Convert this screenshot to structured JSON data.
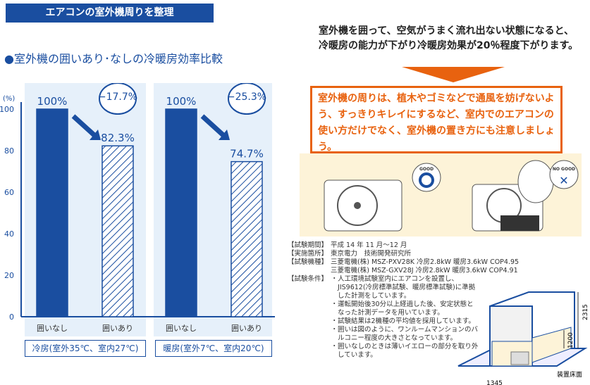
{
  "header": {
    "title": "エアコンの室外機周りを整理"
  },
  "subtitle": "●室外機の囲いあり･なしの冷暖房効率比較",
  "chart_data": {
    "type": "bar",
    "title": "室外機の囲いあり･なしの冷暖房効率比較",
    "ylabel": "(%)",
    "ylim": [
      0,
      100
    ],
    "yticks": [
      0,
      20,
      40,
      60,
      80,
      100
    ],
    "groups": [
      {
        "name": "冷房(室外35℃、室内27℃)",
        "categories": [
          "囲いなし",
          "囲いあり"
        ],
        "values": [
          100,
          82.3
        ],
        "value_labels": [
          "100%",
          "82.3%"
        ],
        "change": "−17.7%"
      },
      {
        "name": "暖房(室外7℃、室内20℃)",
        "categories": [
          "囲いなし",
          "囲いあり"
        ],
        "values": [
          100,
          74.7
        ],
        "value_labels": [
          "100%",
          "74.7%"
        ],
        "change": "−25.3%"
      }
    ],
    "colors": {
      "solid": "#1a4ea0",
      "hatched": "#1a4ea0"
    }
  },
  "lead": "室外機を囲って、空気がうまく流れ出ない状態になると、冷暖房の能力が下がり冷暖房効果が20％程度下がります。",
  "tip": "室外機の周りは、植木やゴミなどで通風を妨げないよう、すっきりキレイにするなど、室内でのエアコンの使い方だけでなく、室外機の置き方にも注意しましょう。",
  "illustration": {
    "good": "GOOD",
    "nogood": "NO GOOD"
  },
  "specs": {
    "rows": [
      {
        "label": "【試験期間】",
        "value": "平成 14 年 11 月〜12 月"
      },
      {
        "label": "【実施箇所】",
        "value": "東京電力　技術開発研究所"
      },
      {
        "label": "【試験機種】",
        "value": "三菱電機(株) MSZ-PXV28K  冷房2.8kW  暖房3.6kW  COP4.95"
      },
      {
        "label": "",
        "value": "三菱電機(株) MSZ-GXV28J  冷房2.8kW  暖房3.6kW  COP4.91"
      }
    ],
    "conditions_label": "【試験条件】",
    "conditions": [
      "人工環境試験室内にエアコンを設置し、JIS9612(冷房標準試験、暖房標準試験)に準拠した計測をしています。",
      "運転開始後30分以上経過した後、安定状態となった計測データを用いています。",
      "試験結果は2機種の平均値を採用しています。",
      "囲いは図のように、ワンルームマンションのバルコニー程度の大きさとなっています。",
      "囲いなしのときは薄いイエローの部分を取り外しています。"
    ]
  },
  "diagram": {
    "height": "2315",
    "fence_height": "1200",
    "width": "1345",
    "floor": "装置床面"
  }
}
